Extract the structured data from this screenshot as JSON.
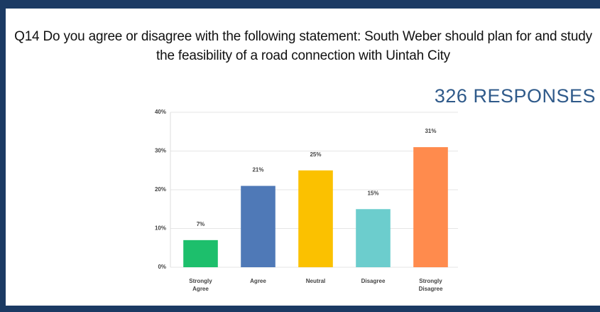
{
  "chart_data": {
    "type": "bar",
    "title": "Q14 Do you agree or disagree with the following statement: South Weber should plan for and study the feasibility of a road connection with Uintah City",
    "subtitle": "326 RESPONSES",
    "categories": [
      "Strongly Agree",
      "Agree",
      "Neutral",
      "Disagree",
      "Strongly Disagree"
    ],
    "values": [
      7,
      21,
      25,
      15,
      31
    ],
    "value_labels": [
      "7%",
      "21%",
      "25%",
      "15%",
      "31%"
    ],
    "colors": [
      "#1dbf6c",
      "#4f79b7",
      "#fbc100",
      "#6ccdcd",
      "#ff8b4d"
    ],
    "ylim": [
      0,
      40
    ],
    "yticks": [
      {
        "value": 0,
        "label": "0%"
      },
      {
        "value": 10,
        "label": "10%"
      },
      {
        "value": 20,
        "label": "20%"
      },
      {
        "value": 30,
        "label": "30%"
      },
      {
        "value": 40,
        "label": "40%"
      }
    ],
    "grid": true
  }
}
